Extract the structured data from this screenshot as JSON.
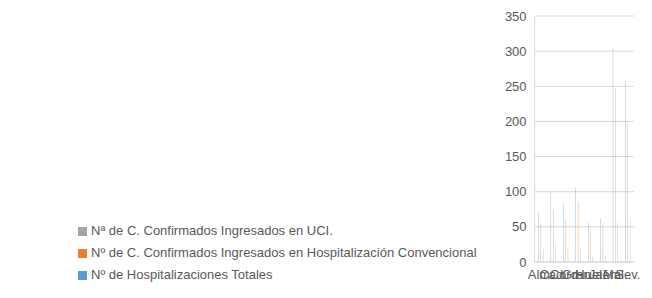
{
  "chart_data": {
    "type": "bar",
    "categories": [
      "Alm.",
      "Cad.",
      "Cord.",
      "Gran.",
      "Huel.",
      "Jaén",
      "Mal.",
      "Sev."
    ],
    "series": [
      {
        "name": "Nº de Hospitalizaciones Totales",
        "color": "#5b9bd5",
        "values": [
          71,
          100,
          83,
          106,
          56,
          62,
          304,
          257
        ]
      },
      {
        "name": "Nº de C. Confirmados Ingresados en Hospitalización Convencional",
        "color": "#ed7d31",
        "values": [
          54,
          75,
          61,
          85,
          47,
          53,
          247,
          198
        ]
      },
      {
        "name": "Nª de C. Confirmados Ingresados en UCI.",
        "color": "#a5a5a5",
        "values": [
          18,
          25,
          22,
          19,
          8,
          9,
          56,
          60
        ]
      }
    ],
    "ylim": [
      0,
      350
    ],
    "yticks": [
      0,
      50,
      100,
      150,
      200,
      250,
      300,
      350
    ],
    "grid": true,
    "legend": "bottom"
  }
}
